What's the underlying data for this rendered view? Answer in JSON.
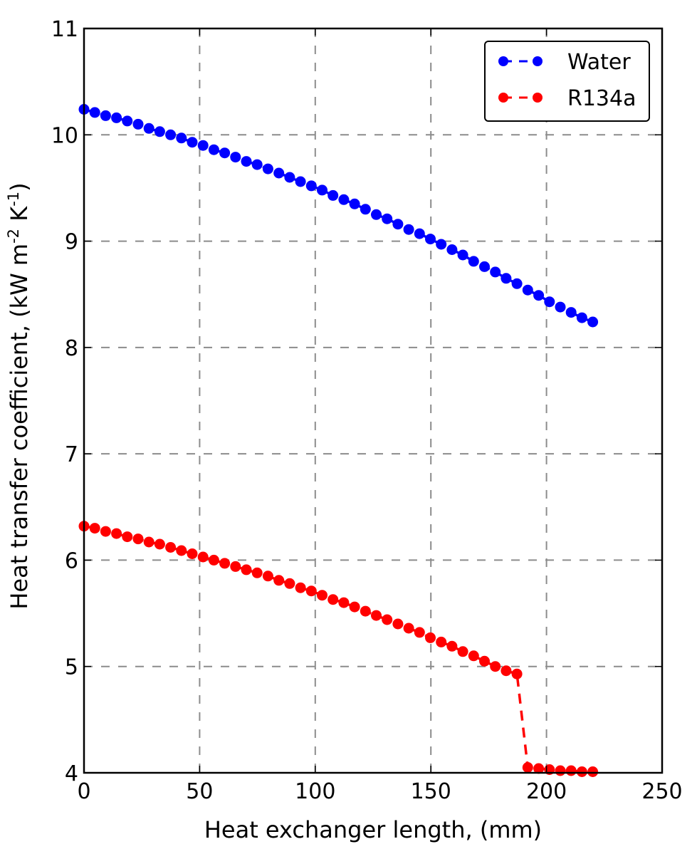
{
  "chart_data": {
    "type": "line",
    "title": "",
    "xlabel": "Heat exchanger length, (mm)",
    "ylabel": "Heat transfer coefficient, (kW m-2 K-1)",
    "ylabel_parts": {
      "base": "Heat transfer coefficient, (kW m",
      "sup1": "-2",
      "mid": " K",
      "sup2": "-1",
      "end": ")"
    },
    "xlim": [
      0,
      250
    ],
    "ylim": [
      4,
      11
    ],
    "xticks": [
      0,
      50,
      100,
      150,
      200,
      250
    ],
    "yticks": [
      4,
      5,
      6,
      7,
      8,
      9,
      10,
      11
    ],
    "grid": true,
    "grid_style": "dashed",
    "legend_position": "upper right",
    "x": [
      0,
      4.68,
      9.36,
      14.04,
      18.72,
      23.4,
      28.09,
      32.77,
      37.45,
      42.13,
      46.81,
      51.49,
      56.17,
      60.85,
      65.53,
      70.21,
      74.89,
      79.57,
      84.26,
      88.94,
      93.62,
      98.3,
      102.98,
      107.66,
      112.34,
      117.02,
      121.7,
      126.38,
      131.06,
      135.74,
      140.43,
      145.11,
      149.79,
      154.47,
      159.15,
      163.83,
      168.51,
      173.19,
      177.87,
      182.55,
      187.23,
      191.91,
      196.6,
      201.28,
      205.96,
      210.64,
      215.32,
      220.0
    ],
    "series": [
      {
        "name": "Water",
        "color": "#0000ff",
        "style": "dashed line with circle markers",
        "values": [
          10.24,
          10.21,
          10.18,
          10.16,
          10.13,
          10.1,
          10.06,
          10.03,
          10.0,
          9.97,
          9.93,
          9.9,
          9.86,
          9.83,
          9.79,
          9.75,
          9.72,
          9.68,
          9.64,
          9.6,
          9.56,
          9.52,
          9.48,
          9.43,
          9.39,
          9.35,
          9.3,
          9.25,
          9.21,
          9.16,
          9.11,
          9.07,
          9.02,
          8.97,
          8.92,
          8.87,
          8.81,
          8.76,
          8.71,
          8.65,
          8.6,
          8.54,
          8.49,
          8.43,
          8.38,
          8.33,
          8.28,
          8.24
        ]
      },
      {
        "name": "R134a",
        "color": "#ff0000",
        "style": "dashed line with circle markers",
        "values": [
          6.32,
          6.3,
          6.27,
          6.25,
          6.22,
          6.2,
          6.17,
          6.15,
          6.12,
          6.09,
          6.06,
          6.03,
          6.0,
          5.97,
          5.94,
          5.91,
          5.88,
          5.85,
          5.81,
          5.78,
          5.74,
          5.71,
          5.67,
          5.63,
          5.6,
          5.56,
          5.52,
          5.48,
          5.44,
          5.4,
          5.36,
          5.32,
          5.27,
          5.23,
          5.19,
          5.14,
          5.1,
          5.05,
          5.0,
          4.96,
          4.93,
          4.05,
          4.04,
          4.03,
          4.02,
          4.02,
          4.01,
          4.01
        ]
      }
    ]
  }
}
